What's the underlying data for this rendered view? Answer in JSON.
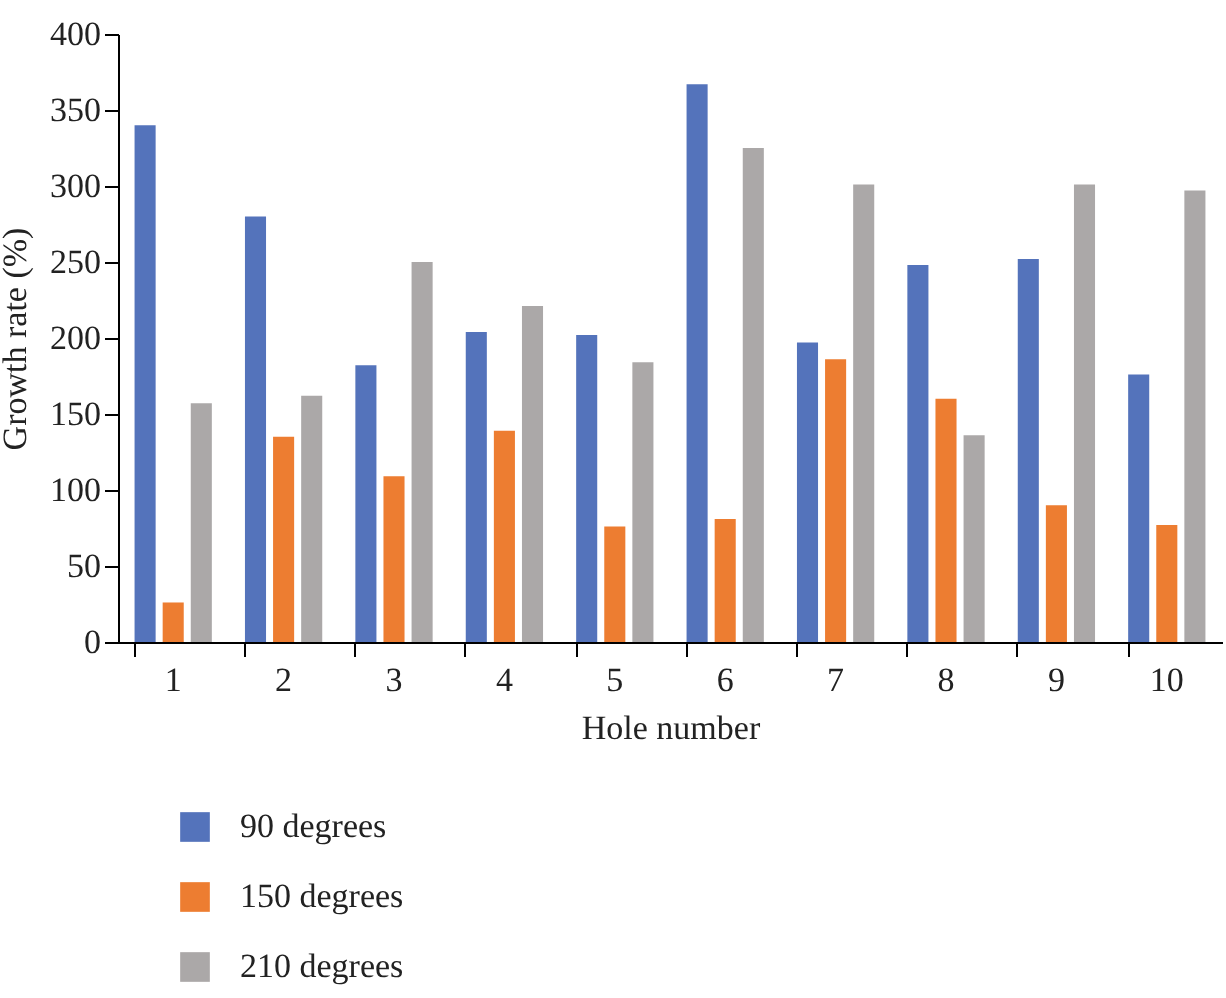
{
  "chart_data": {
    "type": "bar",
    "xlabel": "Hole number",
    "ylabel": "Growth rate (%)",
    "categories": [
      "1",
      "2",
      "3",
      "4",
      "5",
      "6",
      "7",
      "8",
      "9",
      "10"
    ],
    "series": [
      {
        "name": "90 degrees",
        "color": "#5473bb",
        "values": [
          340,
          280,
          182,
          204,
          202,
          367,
          197,
          248,
          252,
          176
        ]
      },
      {
        "name": "150 degrees",
        "color": "#ed7d31",
        "values": [
          26,
          135,
          109,
          139,
          76,
          81,
          186,
          160,
          90,
          77
        ]
      },
      {
        "name": "210 degrees",
        "color": "#aba8a8",
        "values": [
          157,
          162,
          250,
          221,
          184,
          325,
          301,
          136,
          301,
          297
        ]
      }
    ],
    "ylim": [
      0,
      400
    ],
    "yticks": [
      0,
      50,
      100,
      150,
      200,
      250,
      300,
      350,
      400
    ],
    "grid": false,
    "legend": "bottom"
  }
}
